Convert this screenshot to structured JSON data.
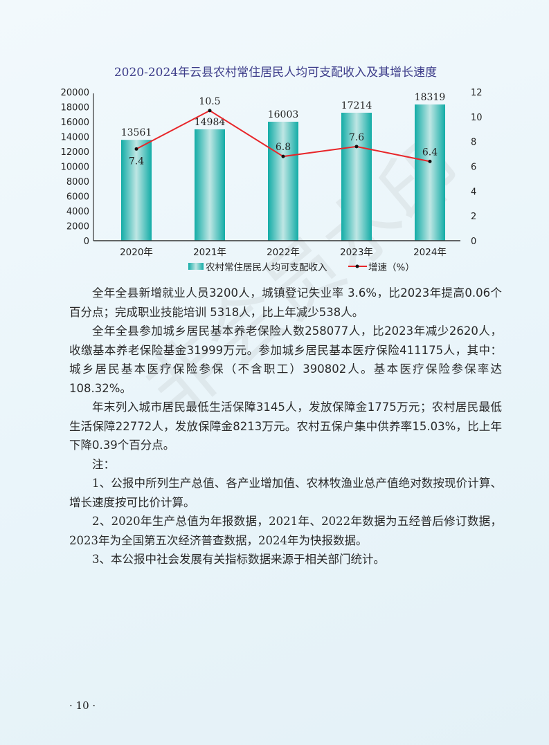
{
  "watermark": "非会员水印",
  "chart_data": {
    "type": "bar+line",
    "title": "2020-2024年云县农村常住居民人均可支配收入及其增长速度",
    "categories": [
      "2020年",
      "2021年",
      "2022年",
      "2023年",
      "2024年"
    ],
    "series": [
      {
        "name": "农村常住居民人均可支配收入",
        "type": "bar",
        "axis": "left",
        "values": [
          13561,
          14984,
          16003,
          17214,
          18319
        ],
        "color": "#1fb5b0"
      },
      {
        "name": "增速（%）",
        "type": "line",
        "axis": "right",
        "values": [
          7.4,
          10.5,
          6.8,
          7.6,
          6.4
        ],
        "color": "#e8262a"
      }
    ],
    "left_axis": {
      "ylim": [
        0,
        20000
      ],
      "ticks": [
        "0",
        "2000",
        "4000",
        "6000",
        "8000",
        "10000",
        "12000",
        "14000",
        "16000",
        "18000",
        "20000"
      ]
    },
    "right_axis": {
      "ylim": [
        0,
        12
      ],
      "ticks": [
        "0",
        "2",
        "4",
        "6",
        "8",
        "10",
        "12"
      ]
    },
    "legend": "bottom",
    "grid": false
  },
  "paragraphs": [
    "全年全县新增就业人员3200人，城镇登记失业率 3.6%，比2023年提高0.06个百分点；完成职业技能培训 5318人，比上年减少538人。",
    "全年全县参加城乡居民基本养老保险人数258077人，比2023年减少2620人，收缴基本养老保险基金31999万元。参加城乡居民基本医疗保险411175人，其中：城乡居民基本医疗保险参保（不含职工）390802人。基本医疗保险参保率达108.32%。",
    "年末列入城市居民最低生活保障3145人，发放保障金1775万元；农村居民最低生活保障22772人，发放保障金8213万元。农村五保户集中供养率15.03%，比上年下降0.39个百分点。"
  ],
  "notes": [
    "注：",
    "1、公报中所列生产总值、各产业增加值、农林牧渔业总产值绝对数按现价计算、增长速度按可比价计算。",
    "2、2020年生产总值为年报数据，2021年、2022年数据为五经普后修订数据，2023年为全国第五次经济普查数据，2024年为快报数据。",
    "3、本公报中社会发展有关指标数据来源于相关部门统计。"
  ],
  "page_number": "· 10 ·"
}
